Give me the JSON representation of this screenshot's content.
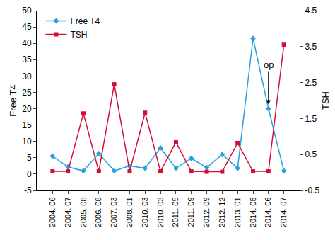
{
  "chart_data": {
    "type": "line",
    "categories": [
      "2004. 06",
      "2004. 07",
      "2005. 08",
      "2006. 08",
      "2007. 03",
      "2008. 01",
      "2010. 03",
      "2010. 03",
      "2011. 05",
      "2011. 09",
      "2012. 09",
      "2012. 12",
      "2013. 01",
      "2014. 05",
      "2014. 06",
      "2014. 07"
    ],
    "series": [
      {
        "name": "Free T4",
        "color": "#27a0dc",
        "marker": "diamond",
        "axis": "y",
        "values": [
          5.5,
          2.2,
          1,
          6.3,
          1,
          2.5,
          1.8,
          8,
          1.8,
          4.8,
          2,
          6,
          1.8,
          41.5,
          20,
          1
        ]
      },
      {
        "name": "TSH",
        "color": "#d0103a",
        "marker": "square",
        "axis": "y2",
        "values": [
          0.03,
          0.03,
          1.64,
          0.03,
          2.45,
          0.03,
          1.66,
          0.03,
          0.84,
          0.03,
          0.02,
          0.02,
          0.82,
          0.03,
          0.03,
          3.55
        ]
      }
    ],
    "y_label": "Free T4",
    "y2_label": "TSH",
    "ylim": [
      -5,
      50
    ],
    "yticks": [
      -5,
      0,
      5,
      10,
      15,
      20,
      25,
      30,
      35,
      40,
      45,
      50
    ],
    "y2lim": [
      -0.5,
      4.5
    ],
    "y2ticks": [
      -0.5,
      0.5,
      1.5,
      2.5,
      3.5,
      4.5
    ],
    "annotations": [
      {
        "text": "op",
        "x": "2014. 06",
        "series": "Free T4"
      }
    ],
    "legend": "upper left",
    "grid": false
  }
}
